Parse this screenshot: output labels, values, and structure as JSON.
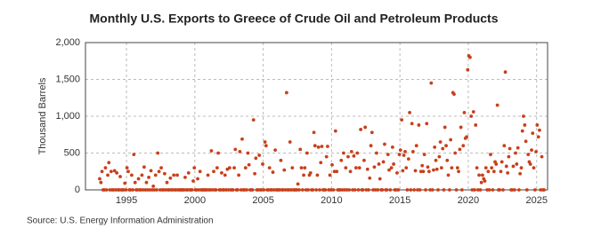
{
  "chart_data": {
    "type": "scatter",
    "title": "Monthly U.S. Exports to Greece of Crude Oil and Petroleum Products",
    "y_label": "Thousand Barrels",
    "source": "Source: U.S. Energy Information Administration",
    "xlim": [
      1992,
      2025.8
    ],
    "xticks": [
      1995,
      2000,
      2005,
      2010,
      2015,
      2020,
      2025
    ],
    "ylim": [
      0,
      2000
    ],
    "yticks": [
      0,
      500,
      {
        "value": 1000,
        "label": "1,000"
      },
      {
        "value": 1500,
        "label": "1,500"
      },
      {
        "value": 2000,
        "label": "2,000"
      }
    ],
    "grid": true,
    "series": [
      {
        "color": "#c8401a",
        "x": [
          1993.04,
          1993.13,
          1993.21,
          1993.29,
          1993.38,
          1993.46,
          1993.54,
          1993.63,
          1993.71,
          1993.79,
          1993.88,
          1993.96,
          1994.04,
          1994.13,
          1994.21,
          1994.29,
          1994.38,
          1994.46,
          1994.54,
          1994.63,
          1994.71,
          1994.79,
          1994.88,
          1994.96,
          1995.04,
          1995.13,
          1995.21,
          1995.29,
          1995.38,
          1995.46,
          1995.54,
          1995.63,
          1995.71,
          1995.79,
          1995.88,
          1995.96,
          1996.04,
          1996.13,
          1996.21,
          1996.29,
          1996.38,
          1996.46,
          1996.54,
          1996.63,
          1996.71,
          1996.79,
          1996.88,
          1996.96,
          1997.04,
          1997.13,
          1997.21,
          1997.29,
          1997.38,
          1997.46,
          1997.54,
          1997.63,
          1997.71,
          1997.79,
          1997.88,
          1997.96,
          1998.04,
          1998.13,
          1998.21,
          1998.29,
          1998.38,
          1998.46,
          1998.54,
          1998.63,
          1998.71,
          1998.79,
          1998.88,
          1998.96,
          1999.04,
          1999.13,
          1999.21,
          1999.29,
          1999.38,
          1999.46,
          1999.54,
          1999.63,
          1999.71,
          1999.79,
          1999.88,
          1999.96,
          2000.04,
          2000.13,
          2000.21,
          2000.29,
          2000.38,
          2000.46,
          2000.54,
          2000.63,
          2000.71,
          2000.79,
          2000.88,
          2000.96,
          2001.04,
          2001.13,
          2001.21,
          2001.29,
          2001.38,
          2001.46,
          2001.54,
          2001.63,
          2001.71,
          2001.79,
          2001.88,
          2001.96,
          2002.04,
          2002.13,
          2002.21,
          2002.29,
          2002.38,
          2002.46,
          2002.54,
          2002.63,
          2002.71,
          2002.79,
          2002.88,
          2002.96,
          2003.04,
          2003.13,
          2003.21,
          2003.29,
          2003.38,
          2003.46,
          2003.54,
          2003.63,
          2003.71,
          2003.79,
          2003.88,
          2003.96,
          2004.04,
          2004.13,
          2004.21,
          2004.29,
          2004.38,
          2004.46,
          2004.54,
          2004.63,
          2004.71,
          2004.79,
          2004.88,
          2004.96,
          2005.04,
          2005.13,
          2005.21,
          2005.29,
          2005.38,
          2005.46,
          2005.54,
          2005.63,
          2005.71,
          2005.79,
          2005.88,
          2005.96,
          2006.04,
          2006.13,
          2006.21,
          2006.29,
          2006.38,
          2006.46,
          2006.54,
          2006.63,
          2006.71,
          2006.79,
          2006.88,
          2006.96,
          2007.04,
          2007.13,
          2007.21,
          2007.29,
          2007.38,
          2007.46,
          2007.54,
          2007.63,
          2007.71,
          2007.79,
          2007.88,
          2007.96,
          2008.04,
          2008.13,
          2008.21,
          2008.29,
          2008.38,
          2008.46,
          2008.54,
          2008.63,
          2008.71,
          2008.79,
          2008.88,
          2008.96,
          2009.04,
          2009.13,
          2009.21,
          2009.29,
          2009.38,
          2009.46,
          2009.54,
          2009.63,
          2009.71,
          2009.79,
          2009.88,
          2009.96,
          2010.04,
          2010.13,
          2010.21,
          2010.29,
          2010.38,
          2010.46,
          2010.54,
          2010.63,
          2010.71,
          2010.79,
          2010.88,
          2010.96,
          2011.04,
          2011.13,
          2011.21,
          2011.29,
          2011.38,
          2011.46,
          2011.54,
          2011.63,
          2011.71,
          2011.79,
          2011.88,
          2011.96,
          2012.04,
          2012.13,
          2012.21,
          2012.29,
          2012.38,
          2012.46,
          2012.54,
          2012.63,
          2012.71,
          2012.79,
          2012.88,
          2012.96,
          2013.04,
          2013.13,
          2013.21,
          2013.29,
          2013.38,
          2013.46,
          2013.54,
          2013.63,
          2013.71,
          2013.79,
          2013.88,
          2013.96,
          2014.04,
          2014.13,
          2014.21,
          2014.29,
          2014.38,
          2014.46,
          2014.54,
          2014.63,
          2014.71,
          2014.79,
          2014.88,
          2014.96,
          2015.04,
          2015.13,
          2015.21,
          2015.29,
          2015.38,
          2015.46,
          2015.54,
          2015.63,
          2015.71,
          2015.79,
          2015.88,
          2015.96,
          2016.04,
          2016.13,
          2016.21,
          2016.29,
          2016.38,
          2016.46,
          2016.54,
          2016.63,
          2016.71,
          2016.79,
          2016.88,
          2016.96,
          2017.04,
          2017.13,
          2017.21,
          2017.29,
          2017.38,
          2017.46,
          2017.54,
          2017.63,
          2017.71,
          2017.79,
          2017.88,
          2017.96,
          2018.04,
          2018.13,
          2018.21,
          2018.29,
          2018.38,
          2018.46,
          2018.54,
          2018.63,
          2018.71,
          2018.79,
          2018.88,
          2018.96,
          2019.04,
          2019.13,
          2019.21,
          2019.29,
          2019.38,
          2019.46,
          2019.54,
          2019.63,
          2019.71,
          2019.79,
          2019.88,
          2019.96,
          2020.04,
          2020.13,
          2020.21,
          2020.29,
          2020.38,
          2020.46,
          2020.54,
          2020.63,
          2020.71,
          2020.79,
          2020.88,
          2020.96,
          2021.04,
          2021.13,
          2021.21,
          2021.29,
          2021.38,
          2021.46,
          2021.54,
          2021.63,
          2021.71,
          2021.79,
          2021.88,
          2021.96,
          2022.04,
          2022.13,
          2022.21,
          2022.29,
          2022.38,
          2022.46,
          2022.54,
          2022.63,
          2022.71,
          2022.79,
          2022.88,
          2022.96,
          2023.04,
          2023.13,
          2023.21,
          2023.29,
          2023.38,
          2023.46,
          2023.54,
          2023.63,
          2023.71,
          2023.79,
          2023.88,
          2023.96,
          2024.04,
          2024.13,
          2024.21,
          2024.29,
          2024.38,
          2024.46,
          2024.54,
          2024.63,
          2024.71,
          2024.79,
          2024.88,
          2024.96,
          2025.04,
          2025.13,
          2025.21,
          2025.29,
          2025.38,
          2025.46,
          2025.54
        ],
        "values": [
          150,
          100,
          250,
          0,
          0,
          300,
          0,
          200,
          370,
          0,
          250,
          0,
          0,
          260,
          0,
          230,
          0,
          0,
          180,
          0,
          0,
          0,
          90,
          0,
          300,
          250,
          0,
          0,
          200,
          0,
          480,
          100,
          0,
          0,
          150,
          0,
          0,
          200,
          0,
          310,
          0,
          100,
          0,
          170,
          0,
          260,
          0,
          50,
          0,
          200,
          0,
          500,
          250,
          0,
          300,
          0,
          0,
          220,
          0,
          100,
          0,
          0,
          160,
          0,
          0,
          200,
          0,
          0,
          200,
          0,
          0,
          0,
          0,
          0,
          0,
          170,
          0,
          0,
          230,
          0,
          0,
          0,
          120,
          300,
          0,
          0,
          150,
          0,
          250,
          0,
          0,
          0,
          0,
          0,
          0,
          200,
          0,
          0,
          530,
          0,
          250,
          0,
          0,
          300,
          500,
          0,
          0,
          230,
          0,
          0,
          200,
          0,
          280,
          0,
          300,
          0,
          0,
          0,
          300,
          550,
          0,
          0,
          200,
          520,
          0,
          690,
          0,
          0,
          300,
          0,
          500,
          340,
          0,
          0,
          0,
          950,
          220,
          430,
          0,
          0,
          470,
          0,
          0,
          350,
          0,
          650,
          600,
          0,
          0,
          300,
          0,
          0,
          240,
          0,
          540,
          0,
          0,
          0,
          0,
          400,
          0,
          0,
          270,
          0,
          1320,
          0,
          0,
          650,
          0,
          300,
          0,
          0,
          0,
          0,
          80,
          0,
          550,
          300,
          0,
          200,
          300,
          0,
          500,
          0,
          200,
          230,
          0,
          0,
          780,
          600,
          0,
          200,
          580,
          0,
          370,
          590,
          0,
          0,
          0,
          450,
          590,
          0,
          200,
          0,
          340,
          0,
          250,
          800,
          250,
          0,
          0,
          0,
          400,
          0,
          500,
          0,
          300,
          0,
          450,
          0,
          250,
          520,
          0,
          460,
          0,
          300,
          500,
          0,
          300,
          820,
          0,
          0,
          400,
          850,
          0,
          280,
          0,
          160,
          600,
          780,
          0,
          310,
          0,
          500,
          0,
          350,
          150,
          0,
          0,
          380,
          620,
          0,
          0,
          480,
          270,
          0,
          300,
          580,
          350,
          0,
          0,
          230,
          0,
          480,
          540,
          950,
          260,
          470,
          520,
          300,
          0,
          420,
          1050,
          0,
          900,
          520,
          0,
          260,
          600,
          0,
          880,
          0,
          250,
          330,
          250,
          480,
          0,
          900,
          310,
          250,
          0,
          1450,
          0,
          270,
          580,
          400,
          280,
          0,
          450,
          650,
          300,
          560,
          0,
          850,
          600,
          400,
          200,
          0,
          680,
          300,
          1320,
          1300,
          500,
          0,
          300,
          250,
          550,
          850,
          0,
          600,
          1050,
          700,
          720,
          1630,
          1820,
          1800,
          1000,
          0,
          1060,
          0,
          880,
          300,
          0,
          200,
          0,
          100,
          200,
          150,
          120,
          300,
          0,
          250,
          0,
          480,
          300,
          0,
          250,
          380,
          350,
          1150,
          0,
          0,
          250,
          380,
          0,
          600,
          1600,
          320,
          230,
          450,
          560,
          0,
          0,
          320,
          0,
          500,
          350,
          570,
          0,
          220,
          300,
          800,
          1000,
          880,
          660,
          0,
          480,
          380,
          350,
          540,
          770,
          300,
          0,
          520,
          880,
          720,
          810,
          0,
          450,
          0,
          0
        ]
      }
    ]
  }
}
